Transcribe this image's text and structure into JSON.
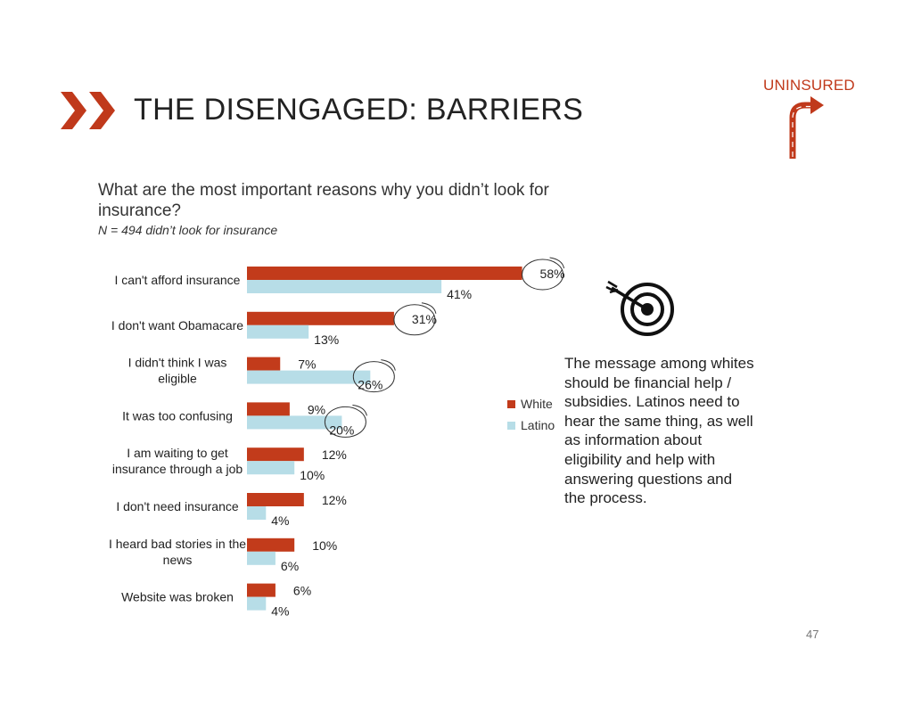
{
  "header": {
    "title": "THE DISENGAGED: BARRIERS",
    "tag": "UNINSURED"
  },
  "question": "What are the most important reasons why you didn’t look for insurance?",
  "subtitle": "N = 494 didn’t look for insurance",
  "message": "The message among whites should be financial help / subsidies. Latinos need to hear the same thing, as well as information about eligibility and help with answering questions and the process.",
  "page_number": "47",
  "colors": {
    "white": "#c23b1b",
    "latino": "#b7dde7",
    "accent": "#c0391b"
  },
  "chart_data": {
    "type": "bar",
    "orientation": "horizontal",
    "title": "What are the most important reasons why you didn’t look for insurance?",
    "categories": [
      "I can't afford insurance",
      "I don't want Obamacare",
      "I didn't think I was eligible",
      "It was too confusing",
      "I am waiting to get insurance through a job",
      "I don't need insurance",
      "I heard bad stories in the news",
      "Website was broken"
    ],
    "category_lines": [
      [
        "I can't afford insurance"
      ],
      [
        "I don't want Obamacare"
      ],
      [
        "I didn't think I was",
        "eligible"
      ],
      [
        "It was too confusing"
      ],
      [
        "I am waiting to get",
        "insurance through a job"
      ],
      [
        "I don't need insurance"
      ],
      [
        "I heard bad stories in the",
        "news"
      ],
      [
        "Website was broken"
      ]
    ],
    "series": [
      {
        "name": "White",
        "values": [
          58,
          31,
          7,
          9,
          12,
          12,
          10,
          6
        ],
        "labels": [
          "58%",
          "31%",
          "7%",
          "9%",
          "12%",
          "12%",
          "10%",
          "6%"
        ]
      },
      {
        "name": "Latino",
        "values": [
          41,
          13,
          26,
          20,
          10,
          4,
          6,
          4
        ],
        "labels": [
          "41%",
          "13%",
          "26%",
          "20%",
          "10%",
          "4%",
          "6%",
          "4%"
        ]
      }
    ],
    "highlighted": {
      "White": [
        0,
        1
      ],
      "Latino": [
        2,
        3
      ]
    },
    "xlim": [
      0,
      60
    ],
    "legend_position": "right"
  }
}
